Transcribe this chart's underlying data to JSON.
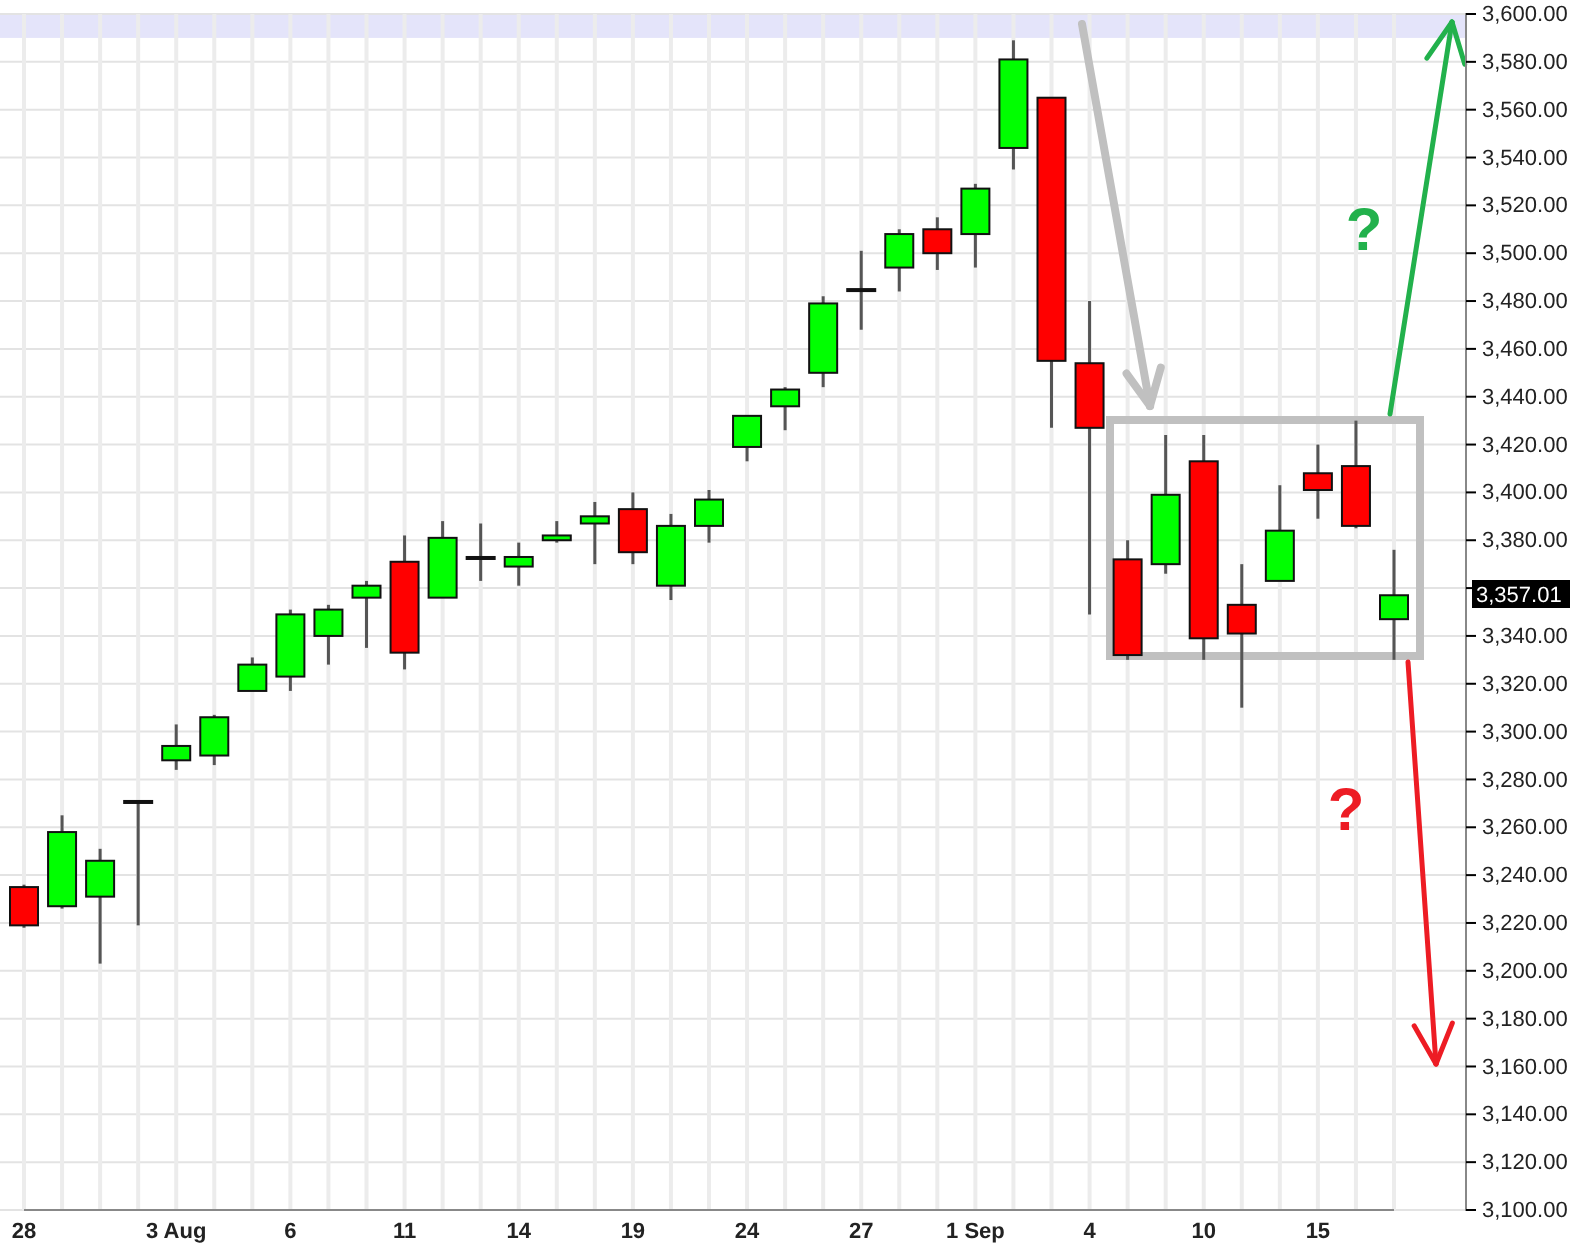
{
  "chart_data": {
    "type": "candlestick",
    "categories": [
      "28",
      null,
      null,
      null,
      "3 Aug",
      null,
      null,
      "6",
      null,
      null,
      "11",
      null,
      null,
      "14",
      null,
      null,
      "19",
      null,
      null,
      "24",
      null,
      null,
      "27",
      null,
      null,
      "1 Sep",
      null,
      null,
      "4",
      null,
      null,
      "10",
      null,
      null,
      "15",
      null,
      null
    ],
    "ohlc": [
      [
        3235,
        3236,
        3218,
        3219
      ],
      [
        3227,
        3265,
        3226,
        3258
      ],
      [
        3231,
        3251,
        3203,
        3246
      ],
      [
        3271,
        3271,
        3219,
        3271
      ],
      [
        3288,
        3303,
        3284,
        3294
      ],
      [
        3290,
        3307,
        3286,
        3306
      ],
      [
        3317,
        3331,
        3317,
        3328
      ],
      [
        3323,
        3351,
        3317,
        3349
      ],
      [
        3340,
        3353,
        3328,
        3351
      ],
      [
        3356,
        3363,
        3335,
        3361
      ],
      [
        3371,
        3382,
        3326,
        3333
      ],
      [
        3356,
        3388,
        3356,
        3381
      ],
      [
        3373,
        3387,
        3363,
        3373
      ],
      [
        3369,
        3379,
        3361,
        3373
      ],
      [
        3380,
        3388,
        3379,
        3382
      ],
      [
        3387,
        3396,
        3370,
        3390
      ],
      [
        3393,
        3400,
        3370,
        3375
      ],
      [
        3361,
        3391,
        3355,
        3386
      ],
      [
        3386,
        3401,
        3379,
        3397
      ],
      [
        3419,
        3432,
        3413,
        3432
      ],
      [
        3436,
        3444,
        3426,
        3443
      ],
      [
        3450,
        3482,
        3444,
        3479
      ],
      [
        3485,
        3501,
        3468,
        3485
      ],
      [
        3494,
        3510,
        3484,
        3508
      ],
      [
        3510,
        3515,
        3493,
        3500
      ],
      [
        3508,
        3529,
        3494,
        3527
      ],
      [
        3544,
        3589,
        3535,
        3581
      ],
      [
        3565,
        3565,
        3427,
        3455
      ],
      [
        3454,
        3480,
        3349,
        3427
      ],
      [
        3372,
        3380,
        3330,
        3332
      ],
      [
        3370,
        3424,
        3366,
        3399
      ],
      [
        3413,
        3424,
        3330,
        3339
      ],
      [
        3353,
        3370,
        3310,
        3341
      ],
      [
        3363,
        3403,
        3363,
        3384
      ],
      [
        3408,
        3420,
        3389,
        3401
      ],
      [
        3411,
        3430,
        3385,
        3386
      ],
      [
        3347,
        3376,
        3330,
        3357
      ]
    ],
    "colors": [
      "#ff0000",
      "#00ff00",
      "#00ff00",
      "#000000",
      "#00ff00",
      "#00ff00",
      "#00ff00",
      "#00ff00",
      "#00ff00",
      "#00ff00",
      "#ff0000",
      "#00ff00",
      "#000000",
      "#00ff00",
      "#00ff00",
      "#00ff00",
      "#ff0000",
      "#00ff00",
      "#00ff00",
      "#00ff00",
      "#00ff00",
      "#00ff00",
      "#000000",
      "#00ff00",
      "#ff0000",
      "#00ff00",
      "#00ff00",
      "#ff0000",
      "#ff0000",
      "#ff0000",
      "#00ff00",
      "#ff0000",
      "#ff0000",
      "#00ff00",
      "#ff0000",
      "#ff0000",
      "#00ff00"
    ],
    "ylim": [
      3100,
      3600
    ],
    "yticks": [
      {
        "value": 3100,
        "label": "3,100.00"
      },
      {
        "value": 3120,
        "label": "3,120.00"
      },
      {
        "value": 3140,
        "label": "3,140.00"
      },
      {
        "value": 3160,
        "label": "3,160.00"
      },
      {
        "value": 3180,
        "label": "3,180.00"
      },
      {
        "value": 3200,
        "label": "3,200.00"
      },
      {
        "value": 3220,
        "label": "3,220.00"
      },
      {
        "value": 3240,
        "label": "3,240.00"
      },
      {
        "value": 3260,
        "label": "3,260.00"
      },
      {
        "value": 3280,
        "label": "3,280.00"
      },
      {
        "value": 3300,
        "label": "3,300.00"
      },
      {
        "value": 3320,
        "label": "3,320.00"
      },
      {
        "value": 3340,
        "label": "3,340.00"
      },
      {
        "value": 3360,
        "label": null
      },
      {
        "value": 3380,
        "label": "3,380.00"
      },
      {
        "value": 3400,
        "label": "3,400.00"
      },
      {
        "value": 3420,
        "label": "3,420.00"
      },
      {
        "value": 3440,
        "label": "3,440.00"
      },
      {
        "value": 3460,
        "label": "3,460.00"
      },
      {
        "value": 3480,
        "label": "3,480.00"
      },
      {
        "value": 3500,
        "label": "3,500.00"
      },
      {
        "value": 3520,
        "label": "3,520.00"
      },
      {
        "value": 3540,
        "label": "3,540.00"
      },
      {
        "value": 3560,
        "label": "3,560.00"
      },
      {
        "value": 3580,
        "label": "3,580.00"
      },
      {
        "value": 3600,
        "label": "3,600.00"
      }
    ],
    "grid": true,
    "bands": [
      {
        "axis": "y",
        "from": 3590,
        "to": 3600,
        "color": "#e4e4fa"
      }
    ],
    "annotations": [
      "?",
      "?",
      "3,357.01"
    ]
  }
}
